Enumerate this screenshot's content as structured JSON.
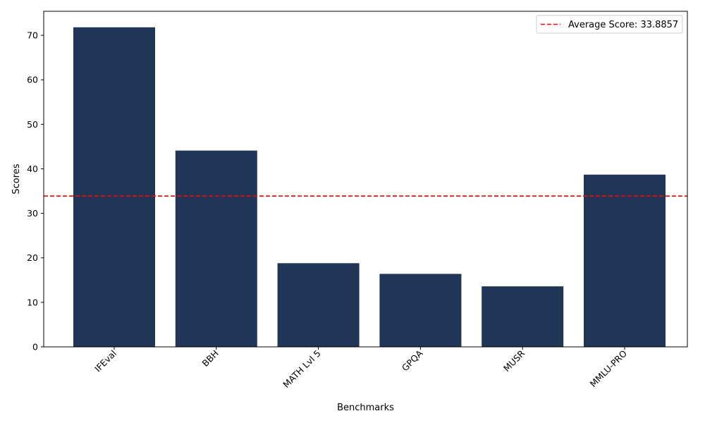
{
  "chart_data": {
    "type": "bar",
    "categories": [
      "IFEval",
      "BBH",
      "MATH Lvl 5",
      "GPQA",
      "MUSR",
      "MMLU-PRO"
    ],
    "values": [
      71.8,
      44.1,
      18.8,
      16.4,
      13.6,
      38.7
    ],
    "bar_color": "#1f3657",
    "xlabel": "Benchmarks",
    "ylabel": "Scores",
    "ylim": [
      0,
      75.4
    ],
    "yticks": [
      0,
      10,
      20,
      30,
      40,
      50,
      60,
      70
    ],
    "grid": false,
    "average_line": {
      "value": 33.8857,
      "label": "Average Score: 33.8857",
      "color": "#ff0000",
      "style": "dashed"
    },
    "legend_placement": "top-right"
  }
}
